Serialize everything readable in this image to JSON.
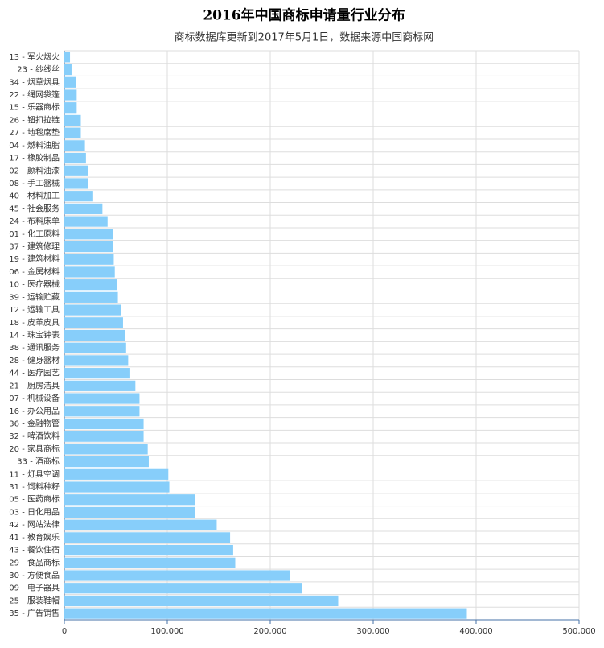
{
  "chart_data": {
    "type": "bar",
    "orientation": "horizontal",
    "title": "2016年中国商标申请量行业分布",
    "subtitle": "商标数据库更新到2017年5月1日，数据来源中国商标网",
    "categories": [
      "13 - 军火烟火",
      "23 - 纱线丝",
      "34 - 烟草烟具",
      "22 - 绳网袋篷",
      "15 - 乐器商标",
      "26 - 钮扣拉链",
      "27 - 地毯席垫",
      "04 - 燃料油脂",
      "17 - 橡胶制品",
      "02 - 颜料油漆",
      "08 - 手工器械",
      "40 - 材料加工",
      "45 - 社会服务",
      "24 - 布料床单",
      "01 - 化工原料",
      "37 - 建筑修理",
      "19 - 建筑材料",
      "06 - 金属材料",
      "10 - 医疗器械",
      "39 - 运输贮藏",
      "12 - 运输工具",
      "18 - 皮革皮具",
      "14 - 珠宝钟表",
      "38 - 通讯服务",
      "28 - 健身器材",
      "44 - 医疗园艺",
      "21 - 厨房洁具",
      "07 - 机械设备",
      "16 - 办公用品",
      "36 - 金融物管",
      "32 - 啤酒饮料",
      "20 - 家具商标",
      "33 - 酒商标",
      "11 - 灯具空调",
      "31 - 饲料种籽",
      "05 - 医药商标",
      "03 - 日化用品",
      "42 - 网站法律",
      "41 - 教育娱乐",
      "43 - 餐饮住宿",
      "29 - 食品商标",
      "30 - 方便食品",
      "09 - 电子器具",
      "25 - 服装鞋帽",
      "35 - 广告销售"
    ],
    "values": [
      5500,
      7000,
      11000,
      12000,
      12000,
      16000,
      16000,
      20000,
      21000,
      23000,
      23000,
      28000,
      37000,
      42000,
      47000,
      47000,
      48000,
      49000,
      51000,
      52000,
      55000,
      57000,
      59000,
      60000,
      62000,
      64000,
      69000,
      73000,
      73000,
      77000,
      77000,
      81000,
      82000,
      101000,
      102000,
      127000,
      127000,
      148000,
      161000,
      164000,
      166000,
      219000,
      231000,
      266000,
      391000
    ],
    "color": "#87cefa",
    "xlim": [
      0,
      500000
    ],
    "xticks": [
      0,
      {
        "value": 100000,
        "label": "100,000"
      },
      {
        "value": 200000,
        "label": "200,000"
      },
      {
        "value": 300000,
        "label": "300,000"
      },
      {
        "value": 400000,
        "label": "400,000"
      },
      {
        "value": 500000,
        "label": "500,000"
      }
    ],
    "grid": true
  }
}
